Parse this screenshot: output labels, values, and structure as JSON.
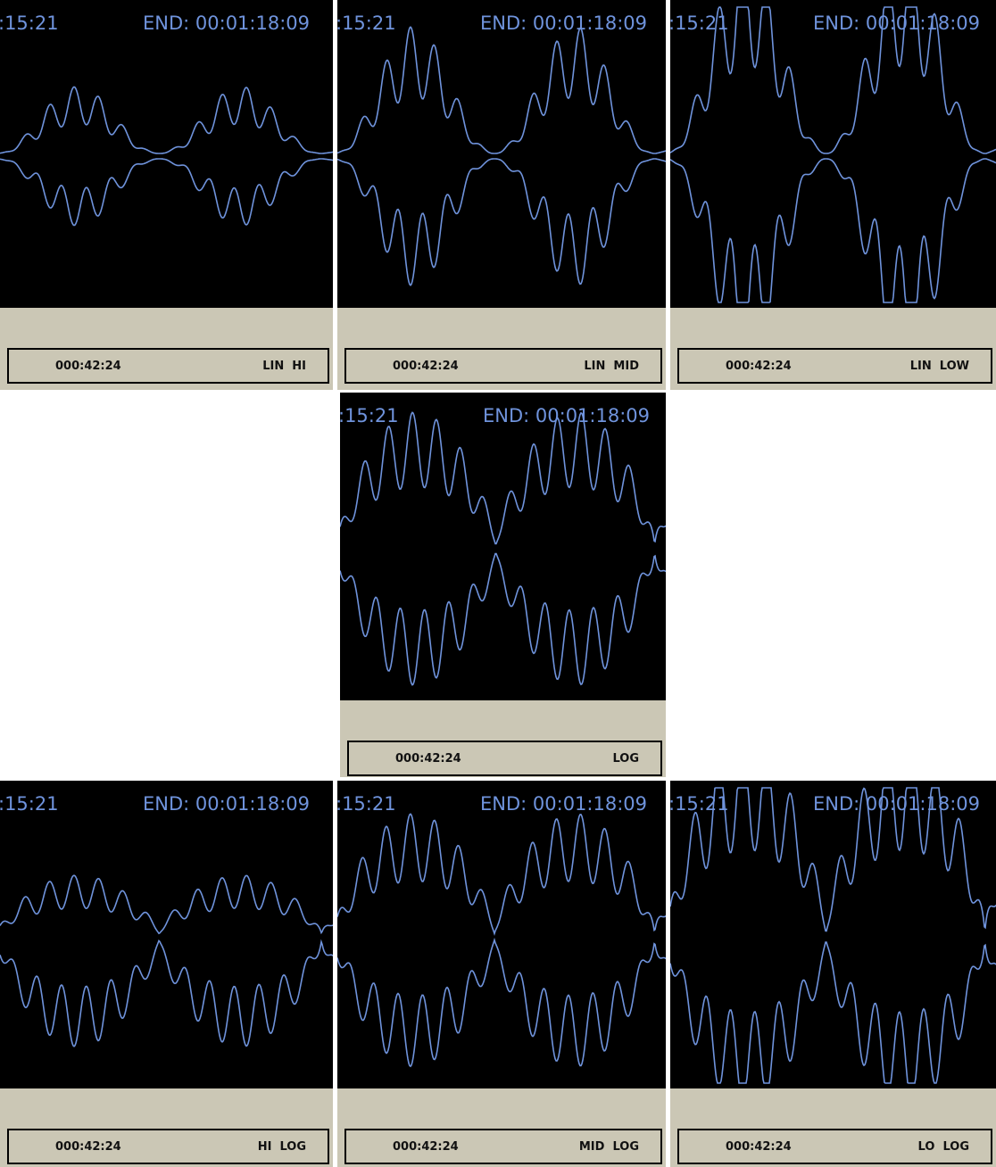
{
  "panels": [
    {
      "start": ":15:21",
      "end": "END: 00:01:18:09",
      "position": "000:42:24",
      "mode": "LIN  HI"
    },
    {
      "start": ":15:21",
      "end": "END: 00:01:18:09",
      "position": "000:42:24",
      "mode": "LIN  MID"
    },
    {
      "start": ":15:21",
      "end": "END: 00:01:18:09",
      "position": "000:42:24",
      "mode": "LIN  LOW"
    },
    {
      "start": ":15:21",
      "end": "END: 00:01:18:09",
      "position": "000:42:24",
      "mode": "LOG"
    },
    {
      "start": ":15:21",
      "end": "END: 00:01:18:09",
      "position": "000:42:24",
      "mode": "HI  LOG"
    },
    {
      "start": ":15:21",
      "end": "END: 00:01:18:09",
      "position": "000:42:24",
      "mode": "MID  LOG"
    },
    {
      "start": ":15:21",
      "end": "END: 00:01:18:09",
      "position": "000:42:24",
      "mode": "LO  LOG"
    }
  ]
}
